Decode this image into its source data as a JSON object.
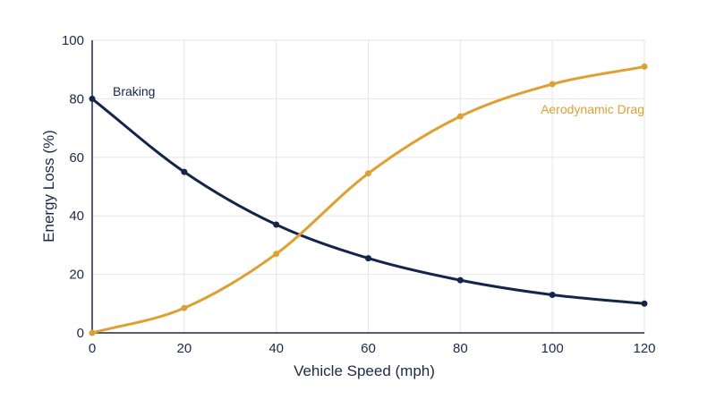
{
  "chart_data": {
    "type": "line",
    "xlabel": "Vehicle Speed (mph)",
    "ylabel": "Energy Loss (%)",
    "xlim": [
      0,
      120
    ],
    "ylim": [
      0,
      100
    ],
    "x_ticks": [
      0,
      20,
      40,
      60,
      80,
      100,
      120
    ],
    "y_ticks": [
      0,
      20,
      40,
      60,
      80,
      100
    ],
    "grid": true,
    "x": [
      0,
      20,
      40,
      60,
      80,
      100,
      120
    ],
    "series": [
      {
        "name": "Braking",
        "color": "#13254a",
        "values": [
          80,
          55,
          37,
          25.5,
          18,
          13,
          10
        ]
      },
      {
        "name": "Aerodynamic Drag",
        "color": "#e0a030",
        "values": [
          0,
          8.5,
          27,
          54.5,
          74,
          85,
          91
        ]
      }
    ]
  }
}
